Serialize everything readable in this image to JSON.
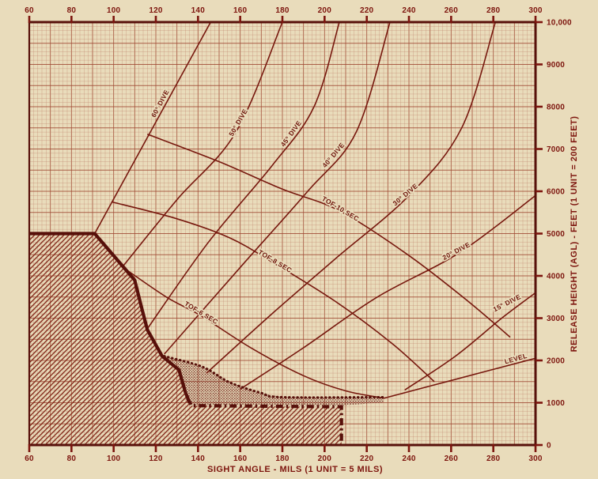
{
  "chart_data": {
    "type": "line",
    "title": "",
    "x_axis": {
      "label": "SIGHT ANGLE - MILS (1 UNIT = 5 MILS)",
      "min": 60,
      "max": 300,
      "ticks": [
        60,
        80,
        100,
        120,
        140,
        160,
        180,
        200,
        220,
        240,
        260,
        280,
        300
      ],
      "ticks_shown_top_and_bottom": true
    },
    "y_axis": {
      "label": "RELEASE HEIGHT (AGL) - FEET (1 UNIT = 200 FEET)",
      "min": 0,
      "max": 10000,
      "ticks": [
        {
          "value": 0,
          "label": "0"
        },
        {
          "value": 1000,
          "label": "1000"
        },
        {
          "value": 2000,
          "label": "2000"
        },
        {
          "value": 3000,
          "label": "3000"
        },
        {
          "value": 4000,
          "label": "4000"
        },
        {
          "value": 5000,
          "label": "5000"
        },
        {
          "value": 6000,
          "label": "6000"
        },
        {
          "value": 7000,
          "label": "7000"
        },
        {
          "value": 8000,
          "label": "8000"
        },
        {
          "value": 9000,
          "label": "9000"
        },
        {
          "value": 10000,
          "label": "10,000"
        }
      ],
      "side": "right"
    },
    "grid": {
      "minor_x_mils": 2,
      "major_x_mils": 10,
      "minor_y_feet": 100,
      "major_y_feet": 500
    },
    "series": [
      {
        "id": "dive-60",
        "label": "60° DIVE",
        "label_at": [
          123,
          8050
        ],
        "label_rotation": -62,
        "points": [
          [
            91,
            5000
          ],
          [
            146,
            10000
          ]
        ]
      },
      {
        "id": "dive-50",
        "label": "50° DIVE",
        "label_at": [
          160,
          7600
        ],
        "label_rotation": -60,
        "points": [
          [
            104,
            4200
          ],
          [
            130,
            5800
          ],
          [
            158,
            7400
          ],
          [
            180,
            10000
          ]
        ]
      },
      {
        "id": "dive-45",
        "label": "45° DIVE",
        "label_at": [
          185,
          7330
        ],
        "label_rotation": -54,
        "points": [
          [
            116,
            2750
          ],
          [
            145,
            4800
          ],
          [
            175,
            6600
          ],
          [
            195,
            8000
          ],
          [
            207,
            10000
          ]
        ]
      },
      {
        "id": "dive-40",
        "label": "40° DIVE",
        "label_at": [
          205,
          6820
        ],
        "label_rotation": -50,
        "points": [
          [
            124,
            2150
          ],
          [
            160,
            4200
          ],
          [
            192,
            6000
          ],
          [
            215,
            7400
          ],
          [
            231,
            10000
          ]
        ]
      },
      {
        "id": "dive-30",
        "label": "30° DIVE",
        "label_at": [
          239,
          5880
        ],
        "label_rotation": -40,
        "points": [
          [
            144,
            1700
          ],
          [
            175,
            3100
          ],
          [
            205,
            4400
          ],
          [
            240,
            5900
          ],
          [
            265,
            7500
          ],
          [
            281,
            10000
          ]
        ]
      },
      {
        "id": "dive-20",
        "label": "20° DIVE",
        "label_at": [
          263,
          4540
        ],
        "label_rotation": -28,
        "points": [
          [
            160,
            1320
          ],
          [
            190,
            2300
          ],
          [
            225,
            3500
          ],
          [
            264,
            4550
          ],
          [
            300,
            5900
          ]
        ]
      },
      {
        "id": "dive-15",
        "label": "15° DIVE",
        "label_at": [
          287,
          3310
        ],
        "label_rotation": -27,
        "points": [
          [
            238,
            1300
          ],
          [
            262,
            2100
          ],
          [
            284,
            3000
          ],
          [
            300,
            3600
          ]
        ]
      },
      {
        "id": "level",
        "label": "LEVEL",
        "label_at": [
          291,
          1990
        ],
        "label_rotation": -16,
        "points": [
          [
            228,
            1105
          ],
          [
            258,
            1500
          ],
          [
            300,
            2050
          ]
        ]
      },
      {
        "id": "tof-10",
        "label": "TOF-10 SEC",
        "label_at": [
          207,
          5540
        ],
        "label_rotation": 31,
        "points": [
          [
            116,
            7350
          ],
          [
            150,
            6700
          ],
          [
            180,
            6050
          ],
          [
            207,
            5540
          ],
          [
            240,
            4480
          ],
          [
            268,
            3400
          ],
          [
            288,
            2550
          ]
        ]
      },
      {
        "id": "tof-8",
        "label": "TOF-8 SEC",
        "label_at": [
          176,
          4300
        ],
        "label_rotation": 31,
        "points": [
          [
            99,
            5750
          ],
          [
            130,
            5350
          ],
          [
            155,
            4900
          ],
          [
            176,
            4300
          ],
          [
            205,
            3400
          ],
          [
            232,
            2400
          ],
          [
            252,
            1500
          ]
        ]
      },
      {
        "id": "tof-6",
        "label": "TOF-6 SEC",
        "label_at": [
          141,
          3080
        ],
        "label_rotation": 31,
        "points": [
          [
            103,
            4250
          ],
          [
            125,
            3500
          ],
          [
            141,
            3070
          ],
          [
            165,
            2300
          ],
          [
            190,
            1640
          ],
          [
            210,
            1280
          ],
          [
            228,
            1110
          ]
        ]
      }
    ],
    "regions": {
      "crosshatch": {
        "name": "no-release-hatched-region",
        "points": [
          [
            60,
            5000
          ],
          [
            91,
            5000
          ],
          [
            110,
            3900
          ],
          [
            113,
            3300
          ],
          [
            116,
            2725
          ],
          [
            123,
            2100
          ],
          [
            131,
            1775
          ],
          [
            134,
            1250
          ],
          [
            137,
            930
          ],
          [
            208,
            900
          ],
          [
            208,
            0
          ],
          [
            60,
            0
          ]
        ]
      },
      "stipple": {
        "name": "caution-stippled-band",
        "points": [
          [
            124,
            2100
          ],
          [
            131,
            1775
          ],
          [
            134,
            1250
          ],
          [
            137,
            950
          ],
          [
            208,
            935
          ],
          [
            228,
            1005
          ],
          [
            228,
            1130
          ],
          [
            180,
            1130
          ],
          [
            170,
            1230
          ],
          [
            155,
            1480
          ],
          [
            142,
            1850
          ]
        ]
      },
      "boundary_solid": [
        [
          60,
          5000
        ],
        [
          91,
          5000
        ],
        [
          110,
          3900
        ],
        [
          113,
          3300
        ],
        [
          116,
          2725
        ],
        [
          123,
          2100
        ],
        [
          131,
          1775
        ],
        [
          134,
          1250
        ],
        [
          136,
          1000
        ]
      ],
      "boundary_dotted": [
        [
          124,
          2100
        ],
        [
          142,
          1850
        ],
        [
          155,
          1480
        ],
        [
          170,
          1230
        ],
        [
          180,
          1130
        ],
        [
          228,
          1130
        ]
      ],
      "boundary_dashdot": [
        [
          135,
          1100
        ],
        [
          137,
          930
        ],
        [
          208,
          905
        ],
        [
          208,
          0
        ]
      ]
    },
    "colors": {
      "paper": "#e9dcbb",
      "grid_fine": "#bb7763",
      "grid_heavy": "#a04a34",
      "ink": "#77180e",
      "boundary": "#57100a",
      "hatch": "#7f2315",
      "text": "#7d150e"
    }
  }
}
